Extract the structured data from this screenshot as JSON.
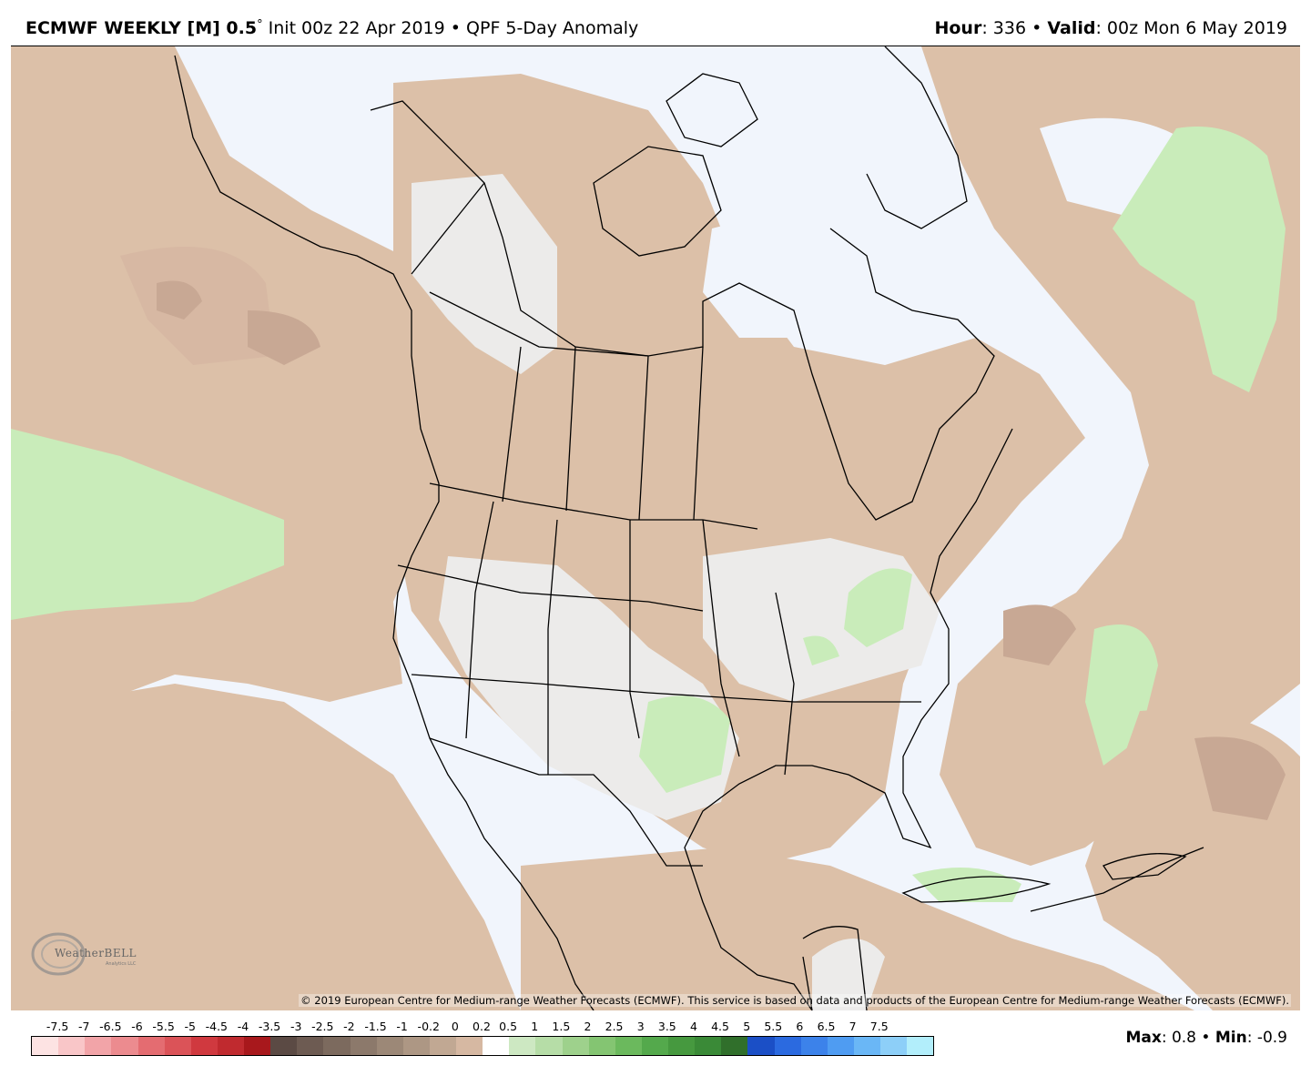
{
  "header": {
    "model": "ECMWF WEEKLY [M] 0.5",
    "deg": "°",
    "init": "Init 00z 22 Apr 2019",
    "sep": " • ",
    "product": "QPF 5-Day Anomaly",
    "hour_label": "Hour",
    "hour_value": ": 336",
    "valid_label": "Valid",
    "valid_value": ": 00z Mon 6 May 2019"
  },
  "map": {
    "copyright": "© 2019 European Centre for Medium-range Weather Forecasts (ECMWF). This service is based on data and products of the European Centre for Medium-range Weather Forecasts (ECMWF).",
    "logo": "WeatherBELL",
    "logo_sub": "Analytics LLC",
    "colors": {
      "ocean_background": "#f1f5fc",
      "near_zero": "#ecebea",
      "dry_light": "#dcc0a8",
      "dry_medium": "#c8a894",
      "wet_light": "#c9ecba",
      "land_outline": "#000000"
    }
  },
  "legend": {
    "ticks": [
      "-7.5",
      "-7",
      "-6.5",
      "-6",
      "-5.5",
      "-5",
      "-4.5",
      "-4",
      "-3.5",
      "-3",
      "-2.5",
      "-2",
      "-1.5",
      "-1",
      "-0.2",
      "0",
      "0.2",
      "0.5",
      "1",
      "1.5",
      "2",
      "2.5",
      "3",
      "3.5",
      "4",
      "4.5",
      "5",
      "5.5",
      "6",
      "6.5",
      "7",
      "7.5"
    ],
    "colors": [
      "#fde3e3",
      "#f9c6c8",
      "#f2a4a8",
      "#ec8b8f",
      "#e46c71",
      "#db5358",
      "#d0393f",
      "#c02a2f",
      "#a8181c",
      "#5b4a44",
      "#6d5b52",
      "#7c6a5e",
      "#8c796b",
      "#9c8877",
      "#ad9784",
      "#c1a893",
      "#d6b8a2",
      "#ffffff",
      "#cde8c2",
      "#b6dda7",
      "#9ed18c",
      "#84c572",
      "#6bb95d",
      "#54a94c",
      "#46993f",
      "#3a8a37",
      "#306f2b",
      "#1b4fc6",
      "#2b6ae0",
      "#3c82ea",
      "#4f9cf2",
      "#6ab7f6",
      "#8dcff8",
      "#b2eefb"
    ],
    "max_label": "Max",
    "max_value": ": 0.8",
    "sep": " • ",
    "min_label": "Min",
    "min_value": ": -0.9"
  }
}
